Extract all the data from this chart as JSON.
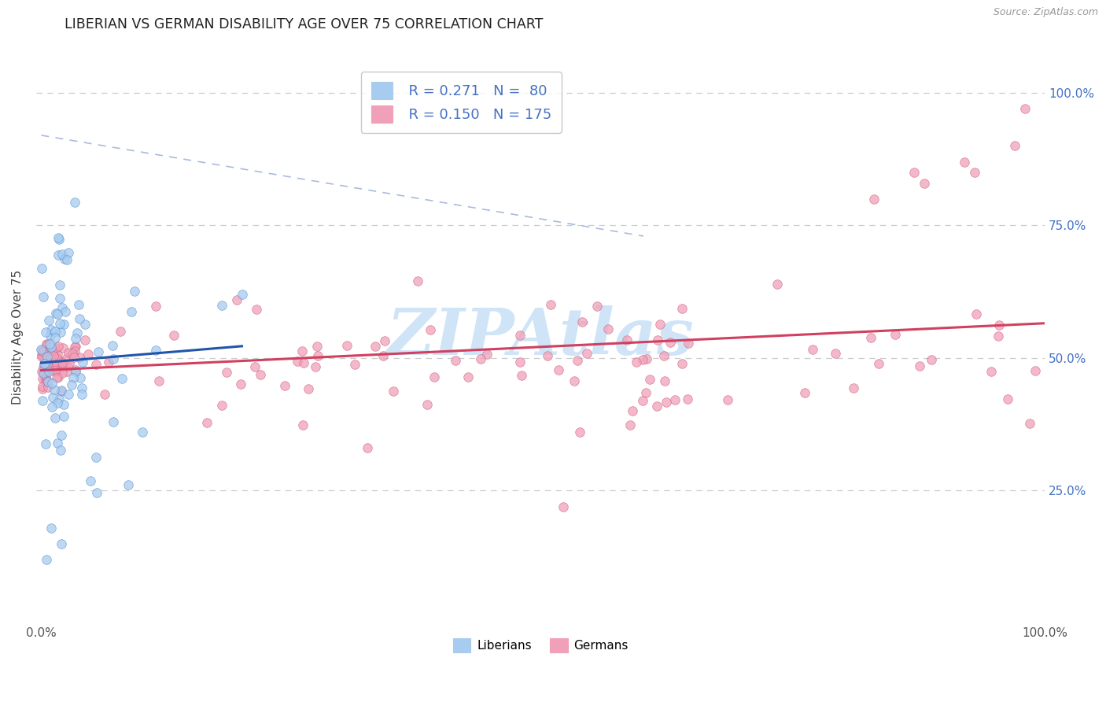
{
  "title": "LIBERIAN VS GERMAN DISABILITY AGE OVER 75 CORRELATION CHART",
  "source_text": "Source: ZipAtlas.com",
  "ylabel": "Disability Age Over 75",
  "liberian_fill": "#a8ccf0",
  "liberian_edge": "#5090d0",
  "liberian_line_color": "#2255aa",
  "german_fill": "#f0a0b8",
  "german_edge": "#d06080",
  "german_line_color": "#d04060",
  "legend_color": "#4472c4",
  "right_tick_color": "#4472c4",
  "watermark_color": "#ddeeff",
  "grid_color": "#cccccc",
  "title_color": "#222222",
  "source_color": "#999999",
  "R_lib": 0.271,
  "N_lib": 80,
  "R_ger": 0.15,
  "N_ger": 175,
  "xlim_min": 0.0,
  "xlim_max": 1.0,
  "ylim_min": 0.0,
  "ylim_max": 1.08,
  "y_ticks": [
    0.25,
    0.5,
    0.75,
    1.0
  ],
  "y_tick_labels": [
    "25.0%",
    "50.0%",
    "75.0%",
    "100.0%"
  ],
  "x_ticks": [
    0.0,
    1.0
  ],
  "x_tick_labels": [
    "0.0%",
    "100.0%"
  ],
  "legend_R_lib": "R = 0.271",
  "legend_N_lib": "N =  80",
  "legend_R_ger": "R = 0.150",
  "legend_N_ger": "N = 175",
  "bottom_legend_lib": "Liberians",
  "bottom_legend_ger": "Germans",
  "watermark": "ZIPAtlas"
}
